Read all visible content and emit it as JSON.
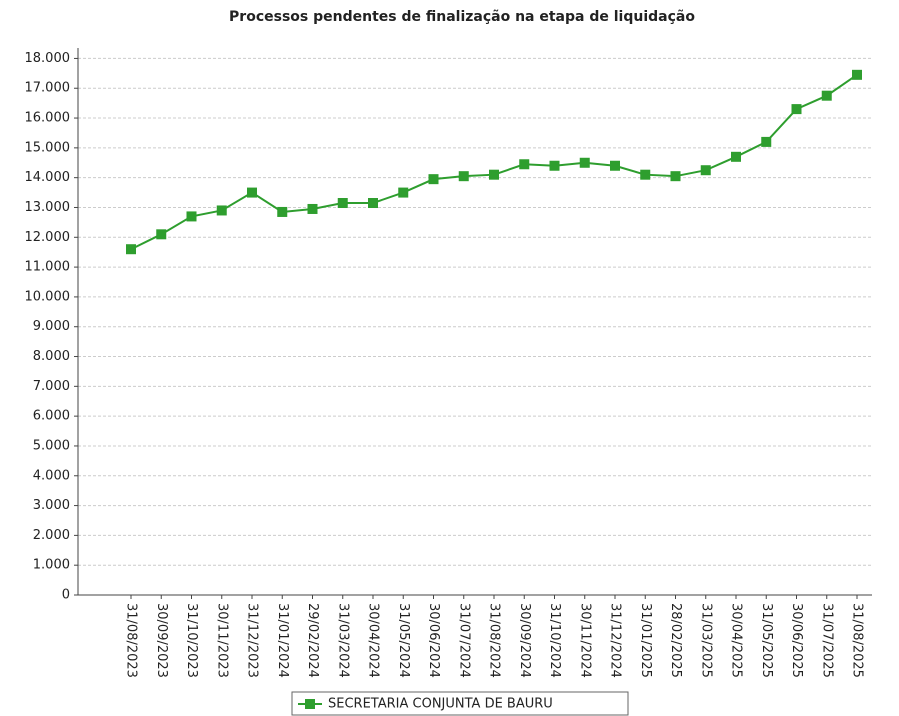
{
  "chart_data": {
    "type": "line",
    "title": "Processos pendentes de finalização na etapa de liquidação",
    "categories": [
      "31/08/2023",
      "30/09/2023",
      "31/10/2023",
      "30/11/2023",
      "31/12/2023",
      "31/01/2024",
      "29/02/2024",
      "31/03/2024",
      "30/04/2024",
      "31/05/2024",
      "30/06/2024",
      "31/07/2024",
      "31/08/2024",
      "30/09/2024",
      "31/10/2024",
      "30/11/2024",
      "31/12/2024",
      "31/01/2025",
      "28/02/2025",
      "31/03/2025",
      "30/04/2025",
      "31/05/2025",
      "30/06/2025",
      "31/07/2025",
      "31/08/2025"
    ],
    "series": [
      {
        "name": "SECRETARIA CONJUNTA DE BAURU",
        "color": "#2e9e2e",
        "values": [
          11600,
          12100,
          12700,
          12900,
          13500,
          12850,
          12950,
          13150,
          13150,
          13500,
          13950,
          14050,
          14100,
          14450,
          14400,
          14500,
          14400,
          14100,
          14050,
          14250,
          14700,
          15200,
          16300,
          16750,
          17450
        ]
      }
    ],
    "ylim": [
      0,
      18350
    ],
    "yticks": [
      0,
      {
        "value": 1000,
        "label": "1.000"
      },
      {
        "value": 2000,
        "label": "2.000"
      },
      {
        "value": 3000,
        "label": "3.000"
      },
      {
        "value": 4000,
        "label": "4.000"
      },
      {
        "value": 5000,
        "label": "5.000"
      },
      {
        "value": 6000,
        "label": "6.000"
      },
      {
        "value": 7000,
        "label": "7.000"
      },
      {
        "value": 8000,
        "label": "8.000"
      },
      {
        "value": 9000,
        "label": "9.000"
      },
      {
        "value": 10000,
        "label": "10.000"
      },
      {
        "value": 11000,
        "label": "11.000"
      },
      {
        "value": 12000,
        "label": "12.000"
      },
      {
        "value": 13000,
        "label": "13.000"
      },
      {
        "value": 14000,
        "label": "14.000"
      },
      {
        "value": 15000,
        "label": "15.000"
      },
      {
        "value": 16000,
        "label": "16.000"
      },
      {
        "value": 17000,
        "label": "17.000"
      },
      {
        "value": 18000,
        "label": "18.000"
      }
    ],
    "grid": true,
    "legend": "bottom"
  }
}
